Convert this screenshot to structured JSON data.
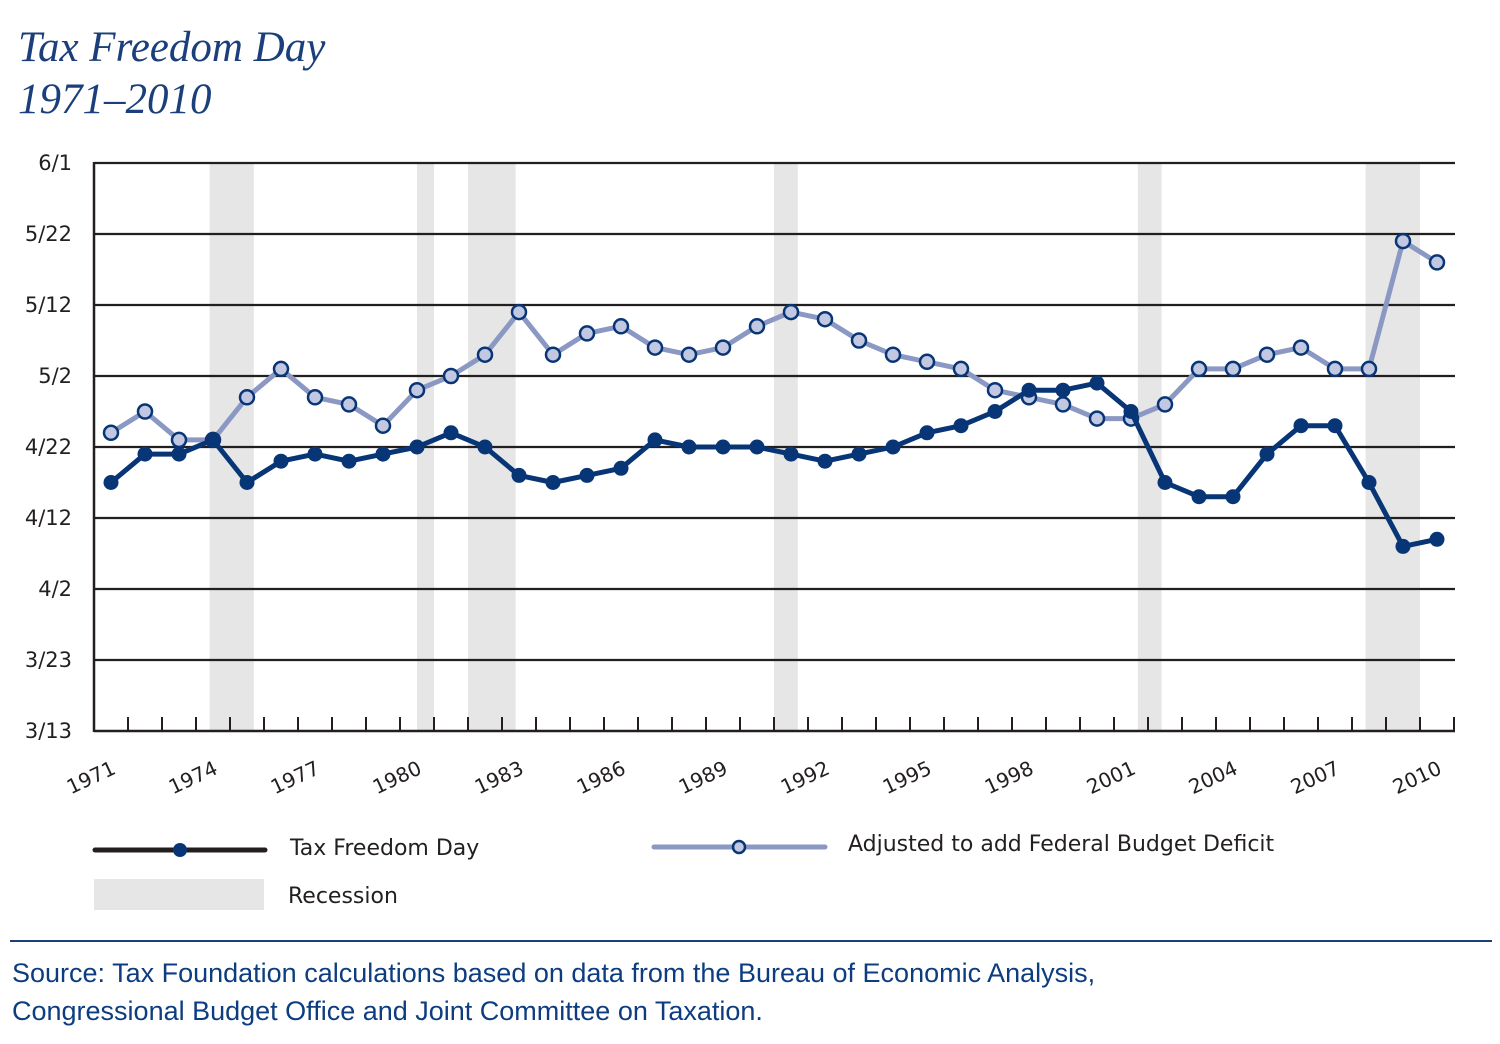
{
  "title": {
    "line1": "Tax Freedom Day",
    "line2": "1971–2010"
  },
  "colors": {
    "title": "#1a3f7a",
    "tax_freedom_day": "#073575",
    "adjusted_line": "#8a98c3",
    "adjusted_marker_fill": "#c3c8e2",
    "recession": "#e6e6e6",
    "grid": "#231f20",
    "source_text": "#0d3d80"
  },
  "legend": {
    "tax_freedom_day": "Tax Freedom Day",
    "adjusted": "Adjusted to add Federal Budget Deficit",
    "recession": "Recession"
  },
  "source": {
    "line1": "Source: Tax Foundation calculations based on data from the Bureau of Economic Analysis,",
    "line2": "Congressional Budget Office and Joint Committee on Taxation."
  },
  "chart_data": {
    "type": "line",
    "title": "Tax Freedom Day 1971–2010",
    "xlabel": "",
    "ylabel": "",
    "grid": true,
    "legend_position": "bottom",
    "x": [
      1971,
      1972,
      1973,
      1974,
      1975,
      1976,
      1977,
      1978,
      1979,
      1980,
      1981,
      1982,
      1983,
      1984,
      1985,
      1986,
      1987,
      1988,
      1989,
      1990,
      1991,
      1992,
      1993,
      1994,
      1995,
      1996,
      1997,
      1998,
      1999,
      2000,
      2001,
      2002,
      2003,
      2004,
      2005,
      2006,
      2007,
      2008,
      2009,
      2010
    ],
    "x_tick_labels": [
      "1971",
      "1974",
      "1977",
      "1980",
      "1983",
      "1986",
      "1989",
      "1992",
      "1995",
      "1998",
      "2001",
      "2004",
      "2007",
      "2010"
    ],
    "y_tick_labels": [
      "3/13",
      "3/23",
      "4/2",
      "4/12",
      "4/22",
      "5/2",
      "5/12",
      "5/22",
      "6/1"
    ],
    "ylim": [
      "3/13",
      "6/1"
    ],
    "series": [
      {
        "name": "Tax Freedom Day",
        "marker": "filled-circle",
        "values": [
          "4/17",
          "4/21",
          "4/21",
          "4/23",
          "4/17",
          "4/20",
          "4/21",
          "4/20",
          "4/21",
          "4/22",
          "4/24",
          "4/22",
          "4/18",
          "4/17",
          "4/18",
          "4/19",
          "4/23",
          "4/22",
          "4/22",
          "4/22",
          "4/21",
          "4/20",
          "4/21",
          "4/22",
          "4/24",
          "4/25",
          "4/27",
          "4/30",
          "4/30",
          "5/1",
          "4/27",
          "4/17",
          "4/15",
          "4/15",
          "4/21",
          "4/25",
          "4/25",
          "4/17",
          "4/8",
          "4/9"
        ]
      },
      {
        "name": "Adjusted to add Federal Budget Deficit",
        "marker": "open-circle",
        "values": [
          "4/24",
          "4/27",
          "4/23",
          "4/23",
          "4/29",
          "5/3",
          "4/29",
          "4/28",
          "4/25",
          "4/30",
          "5/2",
          "5/5",
          "5/11",
          "5/5",
          "5/8",
          "5/9",
          "5/6",
          "5/5",
          "5/6",
          "5/9",
          "5/11",
          "5/10",
          "5/7",
          "5/5",
          "5/4",
          "5/3",
          "4/30",
          "4/29",
          "4/28",
          "4/26",
          "4/26",
          "4/28",
          "5/3",
          "5/3",
          "5/5",
          "5/6",
          "5/3",
          "5/3",
          "5/21",
          "5/18"
        ]
      }
    ],
    "recessions": [
      {
        "start": 1973.9,
        "end": 1975.2
      },
      {
        "start": 1980.0,
        "end": 1980.5
      },
      {
        "start": 1981.5,
        "end": 1982.9
      },
      {
        "start": 1990.5,
        "end": 1991.2
      },
      {
        "start": 2001.2,
        "end": 2001.9
      },
      {
        "start": 2007.9,
        "end": 2009.5
      }
    ]
  }
}
